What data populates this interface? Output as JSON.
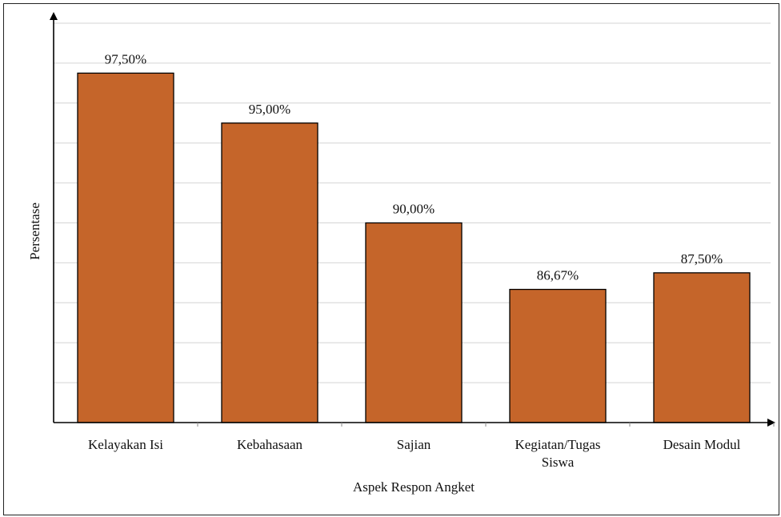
{
  "chart_data": {
    "type": "bar",
    "categories": [
      [
        "Kelayakan Isi"
      ],
      [
        "Kebahasaan"
      ],
      [
        "Sajian"
      ],
      [
        "Kegiatan/Tugas",
        "Siswa"
      ],
      [
        "Desain Modul"
      ]
    ],
    "values": [
      97.5,
      95.0,
      90.0,
      86.67,
      87.5
    ],
    "value_labels": [
      "97,50%",
      "95,00%",
      "90,00%",
      "86,67%",
      "87,50%"
    ],
    "xlabel": "Aspek Respon Angket",
    "ylabel": "Persentase",
    "ylim": [
      80,
      100
    ],
    "y_gridline_step": 2,
    "grid": true,
    "y_tick_labels_shown": false,
    "bar_color": "#c5652a",
    "bar_edge_color": "#000000",
    "grid_color": "#d4d4d4",
    "axis_color": "#000000"
  }
}
